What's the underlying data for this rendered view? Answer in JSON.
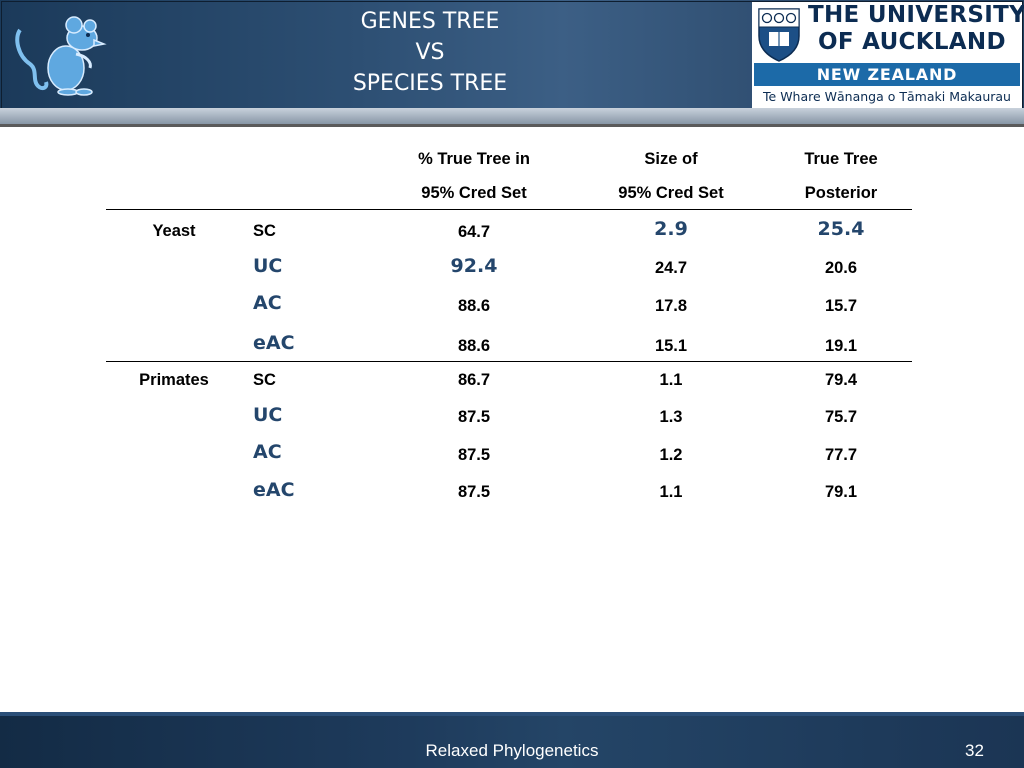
{
  "header": {
    "title_lines": [
      "GENES TREE",
      "VS",
      "SPECIES TREE"
    ],
    "logo": {
      "line1": "THE UNIVERSITY",
      "line2": "OF AUCKLAND",
      "country": "NEW ZEALAND",
      "maori_name": "Te Whare Wānanga o Tāmaki Makaurau"
    }
  },
  "table": {
    "columns": [
      {
        "line1": "% True Tree in",
        "line2": "95% Cred Set"
      },
      {
        "line1": "Size of",
        "line2": "95% Cred Set"
      },
      {
        "line1": "True Tree",
        "line2": "Posterior"
      }
    ],
    "groups": [
      {
        "name": "Yeast",
        "rows": [
          {
            "method": "SC",
            "values": [
              "64.7",
              "2.9",
              "25.4"
            ]
          },
          {
            "method": "UC",
            "values": [
              "92.4",
              "24.7",
              "20.6"
            ]
          },
          {
            "method": "AC",
            "values": [
              "88.6",
              "17.8",
              "15.7"
            ]
          },
          {
            "method": "eAC",
            "values": [
              "88.6",
              "15.1",
              "19.1"
            ]
          }
        ]
      },
      {
        "name": "Primates",
        "rows": [
          {
            "method": "SC",
            "values": [
              "86.7",
              "1.1",
              "79.4"
            ]
          },
          {
            "method": "UC",
            "values": [
              "87.5",
              "1.3",
              "75.7"
            ]
          },
          {
            "method": "AC",
            "values": [
              "87.5",
              "1.2",
              "77.7"
            ]
          },
          {
            "method": "eAC",
            "values": [
              "87.5",
              "1.1",
              "79.1"
            ]
          }
        ]
      }
    ],
    "highlight_color": "#24466c"
  },
  "footer": {
    "title": "Relaxed Phylogenetics",
    "page_number": "32"
  }
}
